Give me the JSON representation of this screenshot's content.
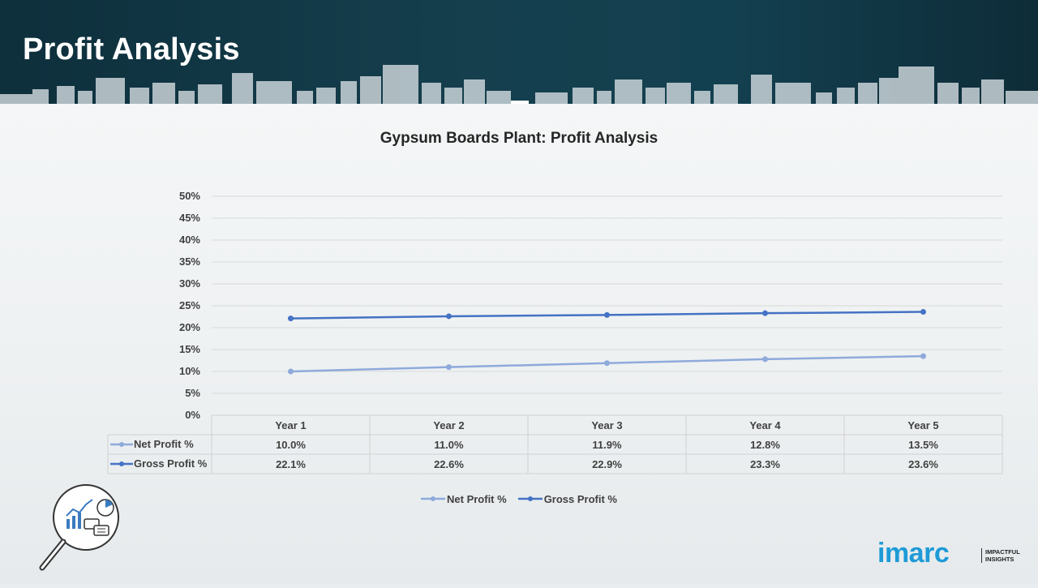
{
  "page": {
    "title": "Profit Analysis"
  },
  "colors": {
    "header_bg": "#0e2f3c",
    "net_line": "#8eaadb",
    "gross_line": "#4472c4",
    "logo_blue": "#1e9bd7"
  },
  "chart_data": {
    "type": "line",
    "title": "Gypsum Boards Plant: Profit Analysis",
    "categories": [
      "Year 1",
      "Year 2",
      "Year 3",
      "Year 4",
      "Year 5"
    ],
    "series": [
      {
        "name": "Net Profit %",
        "values": [
          10.0,
          11.0,
          11.9,
          12.8,
          13.5
        ],
        "labels": [
          "10.0%",
          "11.0%",
          "11.9%",
          "12.8%",
          "13.5%"
        ]
      },
      {
        "name": "Gross Profit %",
        "values": [
          22.1,
          22.6,
          22.9,
          23.3,
          23.6
        ],
        "labels": [
          "22.1%",
          "22.6%",
          "22.9%",
          "23.3%",
          "23.6%"
        ]
      }
    ],
    "ylim": [
      0,
      50
    ],
    "yticks": [
      "0%",
      "5%",
      "10%",
      "15%",
      "20%",
      "25%",
      "30%",
      "35%",
      "40%",
      "45%",
      "50%"
    ],
    "grid": true,
    "legend_position": "bottom",
    "data_table": true
  },
  "branding": {
    "logo_text": "imarc",
    "tagline_1": "IMPACTFUL",
    "tagline_2": "INSIGHTS"
  },
  "icons": {
    "analysis": "magnifier-chart-icon"
  }
}
